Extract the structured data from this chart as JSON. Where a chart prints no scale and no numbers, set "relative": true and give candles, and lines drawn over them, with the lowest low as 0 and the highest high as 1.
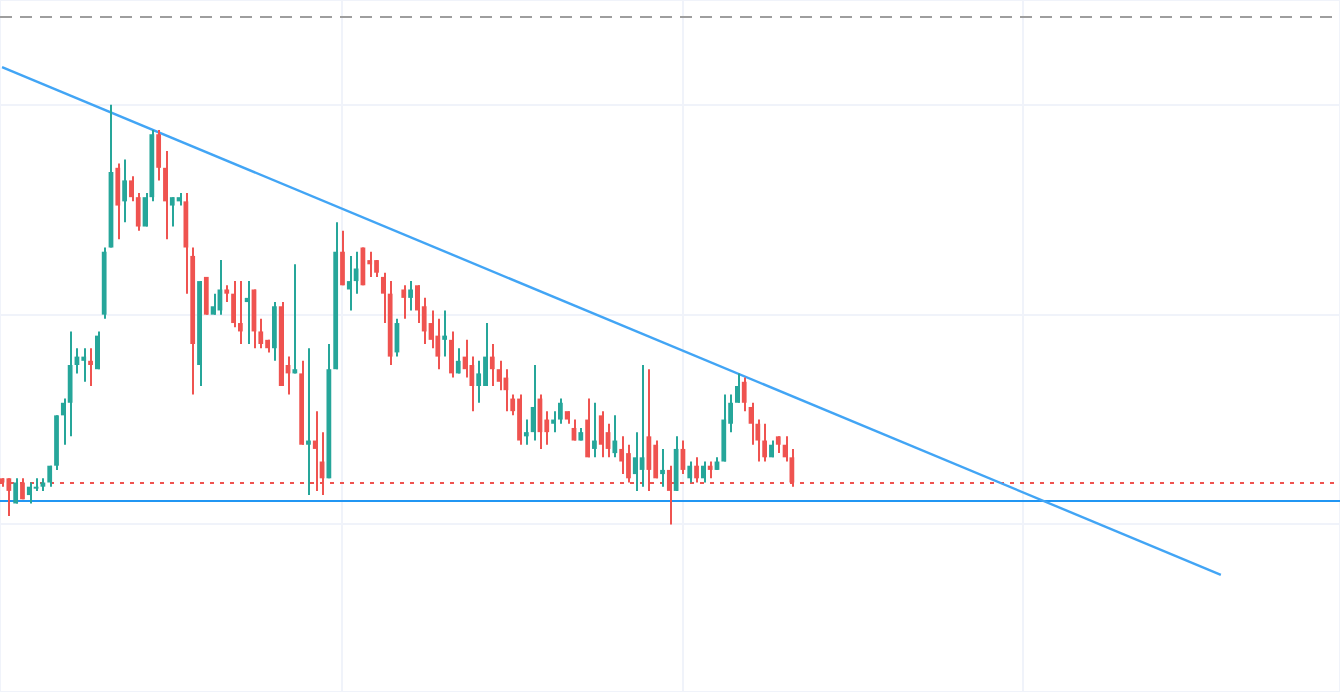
{
  "chart_data": {
    "type": "candlestick",
    "relative": true,
    "grid": true,
    "legend": false,
    "tick_labels": false,
    "categories": [
      null,
      null,
      null,
      null,
      null,
      null,
      null,
      null,
      null,
      null,
      null,
      null,
      null,
      null,
      null,
      null,
      null,
      null,
      null,
      null,
      null,
      null,
      null,
      null,
      null,
      null,
      null,
      null,
      null,
      null,
      null,
      null,
      null,
      null,
      null,
      null,
      null,
      null,
      null,
      null,
      null,
      null,
      null,
      null,
      null,
      null,
      null,
      null,
      null,
      null,
      null,
      null,
      null,
      null,
      null,
      null,
      null,
      null,
      null,
      null,
      null,
      null,
      null,
      null,
      null,
      null,
      null,
      null,
      null,
      null,
      null,
      null,
      null,
      null,
      null,
      null,
      null,
      null,
      null,
      null,
      null,
      null,
      null,
      null,
      null,
      null,
      null,
      null,
      null,
      null,
      null,
      null,
      null,
      null,
      null,
      null,
      null,
      null,
      null,
      null,
      null,
      null,
      null,
      null,
      null,
      null,
      null,
      null,
      null,
      null,
      null,
      null,
      null,
      null,
      null,
      null,
      null,
      null,
      null,
      null,
      null,
      null,
      null,
      null,
      null,
      null,
      null,
      null,
      null,
      null,
      null,
      null,
      null,
      null,
      null,
      null,
      null,
      null,
      null,
      null,
      null,
      null,
      null,
      null,
      null,
      null,
      null,
      null,
      null,
      null,
      null,
      null,
      null,
      null,
      null,
      null,
      null,
      null,
      null,
      null,
      null,
      null,
      null,
      null,
      null,
      null,
      null,
      null,
      null,
      null,
      null,
      null,
      null,
      null,
      null,
      null,
      null,
      null,
      null,
      null,
      null,
      null,
      null,
      null,
      null,
      null,
      null,
      null,
      null,
      null,
      null,
      null,
      null,
      null,
      null,
      null,
      null
    ],
    "ohlc": [
      [
        0.11,
        0.11,
        0.09,
        0.1
      ],
      [
        0.11,
        0.11,
        0.02,
        0.08
      ],
      [
        0.05,
        0.11,
        0.05,
        0.1
      ],
      [
        0.1,
        0.11,
        0.06,
        0.06
      ],
      [
        0.07,
        0.1,
        0.05,
        0.09
      ],
      [
        0.09,
        0.11,
        0.08,
        0.09
      ],
      [
        0.09,
        0.11,
        0.08,
        0.1
      ],
      [
        0.1,
        0.14,
        0.09,
        0.14
      ],
      [
        0.14,
        0.26,
        0.13,
        0.26
      ],
      [
        0.26,
        0.3,
        0.19,
        0.29
      ],
      [
        0.29,
        0.46,
        0.21,
        0.38
      ],
      [
        0.38,
        0.42,
        0.36,
        0.4
      ],
      [
        0.39,
        0.42,
        0.34,
        0.4
      ],
      [
        0.39,
        0.42,
        0.33,
        0.38
      ],
      [
        0.37,
        0.46,
        0.37,
        0.45
      ],
      [
        0.5,
        0.66,
        0.49,
        0.65
      ],
      [
        0.66,
        1,
        0.66,
        0.84
      ],
      [
        0.85,
        0.86,
        0.68,
        0.76
      ],
      [
        0.77,
        0.87,
        0.72,
        0.82
      ],
      [
        0.82,
        0.83,
        0.77,
        0.78
      ],
      [
        0.78,
        0.79,
        0.7,
        0.71
      ],
      [
        0.71,
        0.79,
        0.71,
        0.78
      ],
      [
        0.78,
        0.94,
        0.77,
        0.93
      ],
      [
        0.93,
        0.94,
        0.82,
        0.85
      ],
      [
        0.85,
        0.89,
        0.68,
        0.77
      ],
      [
        0.76,
        0.78,
        0.71,
        0.78
      ],
      [
        0.77,
        0.79,
        0.76,
        0.78
      ],
      [
        0.77,
        0.79,
        0.55,
        0.66
      ],
      [
        0.64,
        0.66,
        0.31,
        0.43
      ],
      [
        0.38,
        0.58,
        0.33,
        0.58
      ],
      [
        0.59,
        0.59,
        0.5,
        0.5
      ],
      [
        0.5,
        0.55,
        0.5,
        0.52
      ],
      [
        0.51,
        0.63,
        0.5,
        0.56
      ],
      [
        0.56,
        0.57,
        0.53,
        0.55
      ],
      [
        0.55,
        0.58,
        0.47,
        0.48
      ],
      [
        0.48,
        0.58,
        0.43,
        0.46
      ],
      [
        0.53,
        0.58,
        0.43,
        0.54
      ],
      [
        0.56,
        0.56,
        0.42,
        0.46
      ],
      [
        0.46,
        0.49,
        0.42,
        0.43
      ],
      [
        0.44,
        0.44,
        0.41,
        0.42
      ],
      [
        0.42,
        0.53,
        0.39,
        0.52
      ],
      [
        0.52,
        0.53,
        0.33,
        0.33
      ],
      [
        0.38,
        0.4,
        0.31,
        0.36
      ],
      [
        0.36,
        0.62,
        0.36,
        0.37
      ],
      [
        0.36,
        0.39,
        0.19,
        0.19
      ],
      [
        0.19,
        0.42,
        0.07,
        0.2
      ],
      [
        0.2,
        0.27,
        0.08,
        0.18
      ],
      [
        0.15,
        0.22,
        0.07,
        0.11
      ],
      [
        0.11,
        0.43,
        0.11,
        0.37
      ],
      [
        0.37,
        0.72,
        0.37,
        0.65
      ],
      [
        0.65,
        0.7,
        0.57,
        0.57
      ],
      [
        0.56,
        0.64,
        0.51,
        0.58
      ],
      [
        0.58,
        0.65,
        0.55,
        0.61
      ],
      [
        0.66,
        0.66,
        0.57,
        0.57
      ],
      [
        0.63,
        0.65,
        0.59,
        0.62
      ],
      [
        0.63,
        0.63,
        0.59,
        0.6
      ],
      [
        0.59,
        0.6,
        0.48,
        0.55
      ],
      [
        0.55,
        0.58,
        0.38,
        0.4
      ],
      [
        0.41,
        0.49,
        0.4,
        0.48
      ],
      [
        0.56,
        0.57,
        0.49,
        0.54
      ],
      [
        0.54,
        0.58,
        0.51,
        0.56
      ],
      [
        0.57,
        0.57,
        0.48,
        0.51
      ],
      [
        0.52,
        0.54,
        0.43,
        0.46
      ],
      [
        0.48,
        0.51,
        0.42,
        0.44
      ],
      [
        0.45,
        0.49,
        0.37,
        0.4
      ],
      [
        0.44,
        0.51,
        0.4,
        0.45
      ],
      [
        0.44,
        0.46,
        0.35,
        0.36
      ],
      [
        0.36,
        0.42,
        0.36,
        0.39
      ],
      [
        0.4,
        0.44,
        0.35,
        0.37
      ],
      [
        0.38,
        0.4,
        0.27,
        0.33
      ],
      [
        0.33,
        0.39,
        0.29,
        0.36
      ],
      [
        0.33,
        0.48,
        0.33,
        0.4
      ],
      [
        0.4,
        0.43,
        0.33,
        0.37
      ],
      [
        0.37,
        0.39,
        0.32,
        0.34
      ],
      [
        0.35,
        0.37,
        0.27,
        0.32
      ],
      [
        0.3,
        0.31,
        0.26,
        0.27
      ],
      [
        0.3,
        0.31,
        0.19,
        0.2
      ],
      [
        0.21,
        0.25,
        0.19,
        0.22
      ],
      [
        0.22,
        0.38,
        0.2,
        0.28
      ],
      [
        0.3,
        0.31,
        0.18,
        0.22
      ],
      [
        0.25,
        0.27,
        0.19,
        0.22
      ],
      [
        0.24,
        0.27,
        0.22,
        0.25
      ],
      [
        0.25,
        0.3,
        0.24,
        0.29
      ],
      [
        0.27,
        0.27,
        0.24,
        0.25
      ],
      [
        0.23,
        0.25,
        0.2,
        0.2
      ],
      [
        0.2,
        0.23,
        0.2,
        0.22
      ],
      [
        0.25,
        0.3,
        0.16,
        0.16
      ],
      [
        0.18,
        0.29,
        0.16,
        0.2
      ],
      [
        0.26,
        0.27,
        0.16,
        0.19
      ],
      [
        0.22,
        0.24,
        0.16,
        0.18
      ],
      [
        0.17,
        0.26,
        0.16,
        0.2
      ],
      [
        0.18,
        0.21,
        0.12,
        0.15
      ],
      [
        0.17,
        0.19,
        0.1,
        0.11
      ],
      [
        0.12,
        0.22,
        0.08,
        0.16
      ],
      [
        0.13,
        0.38,
        0.09,
        0.16
      ],
      [
        0.21,
        0.37,
        0.08,
        0.13
      ],
      [
        0.19,
        0.2,
        0.11,
        0.11
      ],
      [
        0.12,
        0.18,
        0.09,
        0.13
      ],
      [
        0.13,
        0.14,
        0,
        0.08
      ],
      [
        0.08,
        0.21,
        0.08,
        0.18
      ],
      [
        0.18,
        0.2,
        0.12,
        0.13
      ],
      [
        0.11,
        0.15,
        0.1,
        0.14
      ],
      [
        0.14,
        0.16,
        0.1,
        0.11
      ],
      [
        0.11,
        0.15,
        0.1,
        0.14
      ],
      [
        0.14,
        0.15,
        0.11,
        0.13
      ],
      [
        0.13,
        0.16,
        0.13,
        0.15
      ],
      [
        0.15,
        0.31,
        0.15,
        0.25
      ],
      [
        0.24,
        0.31,
        0.22,
        0.29
      ],
      [
        0.29,
        0.36,
        0.29,
        0.33
      ],
      [
        0.34,
        0.35,
        0.27,
        0.29
      ],
      [
        0.28,
        0.29,
        0.19,
        0.24
      ],
      [
        0.24,
        0.25,
        0.15,
        0.2
      ],
      [
        0.2,
        0.24,
        0.15,
        0.16
      ],
      [
        0.16,
        0.2,
        0.16,
        0.19
      ],
      [
        0.21,
        0.21,
        0.17,
        0.19
      ],
      [
        0.19,
        0.21,
        0.15,
        0.16
      ],
      [
        0.16,
        0.18,
        0.09,
        0.1
      ],
      null,
      null,
      null,
      null,
      null,
      null,
      null,
      null,
      null,
      null,
      null,
      null,
      null,
      null,
      null,
      null,
      null,
      null,
      null,
      null,
      null,
      null,
      null,
      null,
      null,
      null,
      null,
      null,
      null,
      null,
      null,
      null,
      null,
      null,
      null,
      null,
      null,
      null,
      null,
      null,
      null,
      null,
      null,
      null,
      null,
      null,
      null,
      null,
      null,
      null,
      null,
      null,
      null,
      null,
      null,
      null,
      null,
      null,
      null,
      null,
      null,
      null,
      null,
      null,
      null,
      null,
      null,
      null,
      null,
      null,
      null,
      null,
      null,
      null,
      null,
      null,
      null,
      null,
      null,
      null
    ],
    "series": [
      {
        "type": "line",
        "color": "#42a5f5",
        "values": [
          1.09,
          null,
          null,
          null,
          null,
          null,
          null,
          null,
          null,
          null,
          null,
          null,
          null,
          null,
          null,
          null,
          null,
          null,
          null,
          null,
          null,
          null,
          null,
          null,
          null,
          null,
          null,
          null,
          null,
          null,
          null,
          null,
          null,
          null,
          null,
          null,
          null,
          null,
          null,
          null,
          null,
          null,
          null,
          null,
          null,
          null,
          null,
          null,
          null,
          null,
          null,
          null,
          null,
          null,
          null,
          null,
          null,
          null,
          null,
          null,
          null,
          null,
          null,
          null,
          null,
          null,
          null,
          null,
          null,
          null,
          null,
          null,
          null,
          null,
          null,
          null,
          null,
          null,
          null,
          null,
          null,
          null,
          null,
          null,
          null,
          null,
          null,
          null,
          null,
          null,
          null,
          null,
          null,
          null,
          null,
          null,
          null,
          null,
          null,
          null,
          null,
          null,
          null,
          null,
          null,
          null,
          null,
          null,
          null,
          null,
          null,
          null,
          null,
          null,
          null,
          null,
          null,
          null,
          null,
          null,
          null,
          null,
          null,
          null,
          null,
          null,
          null,
          null,
          null,
          null,
          null,
          null,
          null,
          null,
          null,
          null,
          null,
          null,
          null,
          null,
          null,
          null,
          null,
          null,
          null,
          null,
          null,
          null,
          null,
          null,
          null,
          null,
          null,
          null,
          null,
          null,
          null,
          null,
          null,
          null,
          null,
          null,
          null,
          null,
          null,
          null,
          null,
          null,
          null,
          null,
          null,
          null,
          null,
          null,
          null,
          null,
          null,
          null,
          null,
          -0.12,
          null,
          null,
          null,
          null,
          null,
          null,
          null,
          null,
          null,
          null,
          null,
          null,
          null,
          null,
          null,
          null,
          null
        ]
      }
    ],
    "ref_lines": [
      {
        "axis": "y",
        "value": 0.1,
        "color": "#ef5350",
        "line_style": "dotted"
      },
      {
        "axis": "y",
        "value": 0.06,
        "color": "#2196f3",
        "line_style": "solid"
      },
      {
        "axis": "y",
        "value": 1.21,
        "color": "#9e9e9e",
        "line_style": "dashed"
      }
    ]
  }
}
